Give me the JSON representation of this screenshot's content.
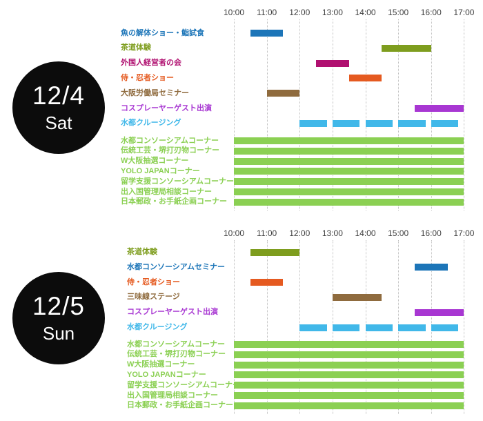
{
  "page": {
    "background": "#ffffff"
  },
  "palette": {
    "blue": "#1c75b8",
    "olive": "#7e9d1e",
    "magenta": "#b01070",
    "orange": "#e55a20",
    "brown": "#8f6b3e",
    "purple": "#a837d2",
    "cyan": "#41b8e9",
    "green": "#8bd053",
    "axis_text": "#3c3c3c",
    "gridline": "#bfbfbf",
    "badge_bg": "#0c0c0c",
    "badge_text": "#ffffff"
  },
  "chart_data": [
    {
      "type": "gantt-timeline",
      "date": "12/4",
      "day": "Sat",
      "x_ticks": [
        "10:00",
        "11:00",
        "12:00",
        "13:00",
        "14:00",
        "15:00",
        "16:00",
        "17:00"
      ],
      "x_range": [
        10,
        17
      ],
      "grid": "dotted-vertical",
      "legend_position": "none",
      "rows": [
        {
          "label": "魚の解体ショー・鮨試食",
          "color": "#1c75b8",
          "group": "event",
          "bars": [
            [
              10.5,
              11.5
            ]
          ]
        },
        {
          "label": "茶道体験",
          "color": "#7e9d1e",
          "group": "event",
          "bars": [
            [
              14.5,
              16.0
            ]
          ]
        },
        {
          "label": "外国人経営者の会",
          "color": "#b01070",
          "group": "event",
          "bars": [
            [
              12.5,
              13.5
            ]
          ]
        },
        {
          "label": "侍・忍者ショー",
          "color": "#e55a20",
          "group": "event",
          "bars": [
            [
              13.5,
              14.5
            ]
          ]
        },
        {
          "label": "大阪労働局セミナー",
          "color": "#8f6b3e",
          "group": "event",
          "bars": [
            [
              11.0,
              12.0
            ]
          ]
        },
        {
          "label": "コスプレーヤーゲスト出演",
          "color": "#a837d2",
          "group": "event",
          "bars": [
            [
              15.5,
              17.0
            ]
          ]
        },
        {
          "label": "水都クルージング",
          "color": "#41b8e9",
          "group": "event",
          "bars": [
            [
              12.0,
              12.83
            ],
            [
              13.0,
              13.83
            ],
            [
              14.0,
              14.83
            ],
            [
              15.0,
              15.83
            ],
            [
              16.0,
              16.83
            ]
          ]
        },
        {
          "label": "水都コンソーシアムコーナー",
          "color": "#8bd053",
          "group": "corner",
          "bars": [
            [
              10.0,
              17.0
            ]
          ]
        },
        {
          "label": "伝統工芸・堺打刃物コーナー",
          "color": "#8bd053",
          "group": "corner",
          "bars": [
            [
              10.0,
              17.0
            ]
          ]
        },
        {
          "label": "W大阪抽選コーナー",
          "color": "#8bd053",
          "group": "corner",
          "bars": [
            [
              10.0,
              17.0
            ]
          ]
        },
        {
          "label": "YOLO JAPANコーナー",
          "color": "#8bd053",
          "group": "corner",
          "bars": [
            [
              10.0,
              17.0
            ]
          ]
        },
        {
          "label": "留学支援コンソーシアムコーナー",
          "color": "#8bd053",
          "group": "corner",
          "bars": [
            [
              10.0,
              17.0
            ]
          ]
        },
        {
          "label": "出入国管理局相談コーナー",
          "color": "#8bd053",
          "group": "corner",
          "bars": [
            [
              10.0,
              17.0
            ]
          ]
        },
        {
          "label": "日本郵政・お手紙企画コーナー",
          "color": "#8bd053",
          "group": "corner",
          "bars": [
            [
              10.0,
              17.0
            ]
          ]
        }
      ]
    },
    {
      "type": "gantt-timeline",
      "date": "12/5",
      "day": "Sun",
      "x_ticks": [
        "10:00",
        "11:00",
        "12:00",
        "13:00",
        "14:00",
        "15:00",
        "16:00",
        "17:00"
      ],
      "x_range": [
        10,
        17
      ],
      "grid": "dotted-vertical",
      "legend_position": "none",
      "rows": [
        {
          "label": "茶道体験",
          "color": "#7e9d1e",
          "group": "event",
          "bars": [
            [
              10.5,
              12.0
            ]
          ]
        },
        {
          "label": "水都コンソーシアムセミナー",
          "color": "#1c75b8",
          "group": "event",
          "bars": [
            [
              15.5,
              16.5
            ]
          ]
        },
        {
          "label": "侍・忍者ショー",
          "color": "#e55a20",
          "group": "event",
          "bars": [
            [
              10.5,
              11.5
            ]
          ]
        },
        {
          "label": "三味線ステージ",
          "color": "#8f6b3e",
          "group": "event",
          "bars": [
            [
              13.0,
              14.5
            ]
          ]
        },
        {
          "label": "コスプレーヤーゲスト出演",
          "color": "#a837d2",
          "group": "event",
          "bars": [
            [
              15.5,
              17.0
            ]
          ]
        },
        {
          "label": "水都クルージング",
          "color": "#41b8e9",
          "group": "event",
          "bars": [
            [
              12.0,
              12.83
            ],
            [
              13.0,
              13.83
            ],
            [
              14.0,
              14.83
            ],
            [
              15.0,
              15.83
            ],
            [
              16.0,
              16.83
            ]
          ]
        },
        {
          "label": "水都コンソーシアムコーナー",
          "color": "#8bd053",
          "group": "corner",
          "bars": [
            [
              10.0,
              17.0
            ]
          ]
        },
        {
          "label": "伝統工芸・堺打刃物コーナー",
          "color": "#8bd053",
          "group": "corner",
          "bars": [
            [
              10.0,
              17.0
            ]
          ]
        },
        {
          "label": "W大阪抽選コーナー",
          "color": "#8bd053",
          "group": "corner",
          "bars": [
            [
              10.0,
              17.0
            ]
          ]
        },
        {
          "label": "YOLO JAPANコーナー",
          "color": "#8bd053",
          "group": "corner",
          "bars": [
            [
              10.0,
              17.0
            ]
          ]
        },
        {
          "label": "留学支援コンソーシアムコーナー",
          "color": "#8bd053",
          "group": "corner",
          "bars": [
            [
              10.0,
              17.0
            ]
          ]
        },
        {
          "label": "出入国管理局相談コーナー",
          "color": "#8bd053",
          "group": "corner",
          "bars": [
            [
              10.0,
              17.0
            ]
          ]
        },
        {
          "label": "日本郵政・お手紙企画コーナー",
          "color": "#8bd053",
          "group": "corner",
          "bars": [
            [
              10.0,
              17.0
            ]
          ]
        }
      ]
    }
  ]
}
